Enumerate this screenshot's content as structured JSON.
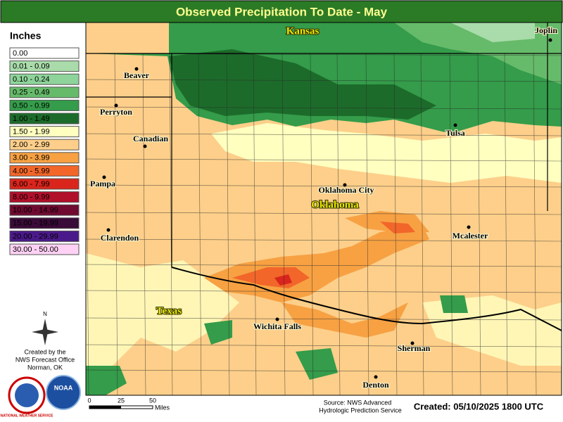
{
  "header": {
    "title": "Observed Precipitation To Date - May"
  },
  "legend": {
    "title": "Inches",
    "items": [
      {
        "label": "0.00",
        "color": "#ffffff"
      },
      {
        "label": "0.01 - 0.09",
        "color": "#a9dcaa"
      },
      {
        "label": "0.10 - 0.24",
        "color": "#8ed49a"
      },
      {
        "label": "0.25 - 0.49",
        "color": "#66bb6a"
      },
      {
        "label": "0.50 - 0.99",
        "color": "#349c4a"
      },
      {
        "label": "1.00 - 1.49",
        "color": "#1c6b2a"
      },
      {
        "label": "1.50 - 1.99",
        "color": "#ffffc0"
      },
      {
        "label": "2.00 - 2.99",
        "color": "#fdcf8a"
      },
      {
        "label": "3.00 - 3.99",
        "color": "#f7a143"
      },
      {
        "label": "4.00 - 5.99",
        "color": "#f2662a"
      },
      {
        "label": "6.00 - 7.99",
        "color": "#d9251c"
      },
      {
        "label": "8.00 - 9.99",
        "color": "#b0102a"
      },
      {
        "label": "10.00 - 14.99",
        "color": "#700a30"
      },
      {
        "label": "15.00 - 19.99",
        "color": "#3a0a38"
      },
      {
        "label": "20.00 - 29.99",
        "color": "#4b1a8a"
      },
      {
        "label": "30.00 - 50.00",
        "color": "#ffd2f5"
      }
    ]
  },
  "places": [
    "Kansas",
    "Joplin",
    "Beaver",
    "Perryton",
    "Canadian",
    "Pampa",
    "Clarendon",
    "Tulsa",
    "Oklahoma City",
    "Oklahoma",
    "Mcalester",
    "Texas",
    "Wichita Falls",
    "Sherman",
    "Denton"
  ],
  "compass": "N",
  "office": [
    "Created by the",
    "NWS Forecast Office",
    "Norman, OK"
  ],
  "logos": [
    "NATIONAL WEATHER SERVICE",
    "NOAA"
  ],
  "scale": {
    "ticks": [
      0,
      25,
      50
    ],
    "unit": "Miles"
  },
  "source": [
    "Source: NWS Advanced",
    "Hydrologic Prediction Service"
  ],
  "created": "Created: 05/10/2025 1800 UTC"
}
